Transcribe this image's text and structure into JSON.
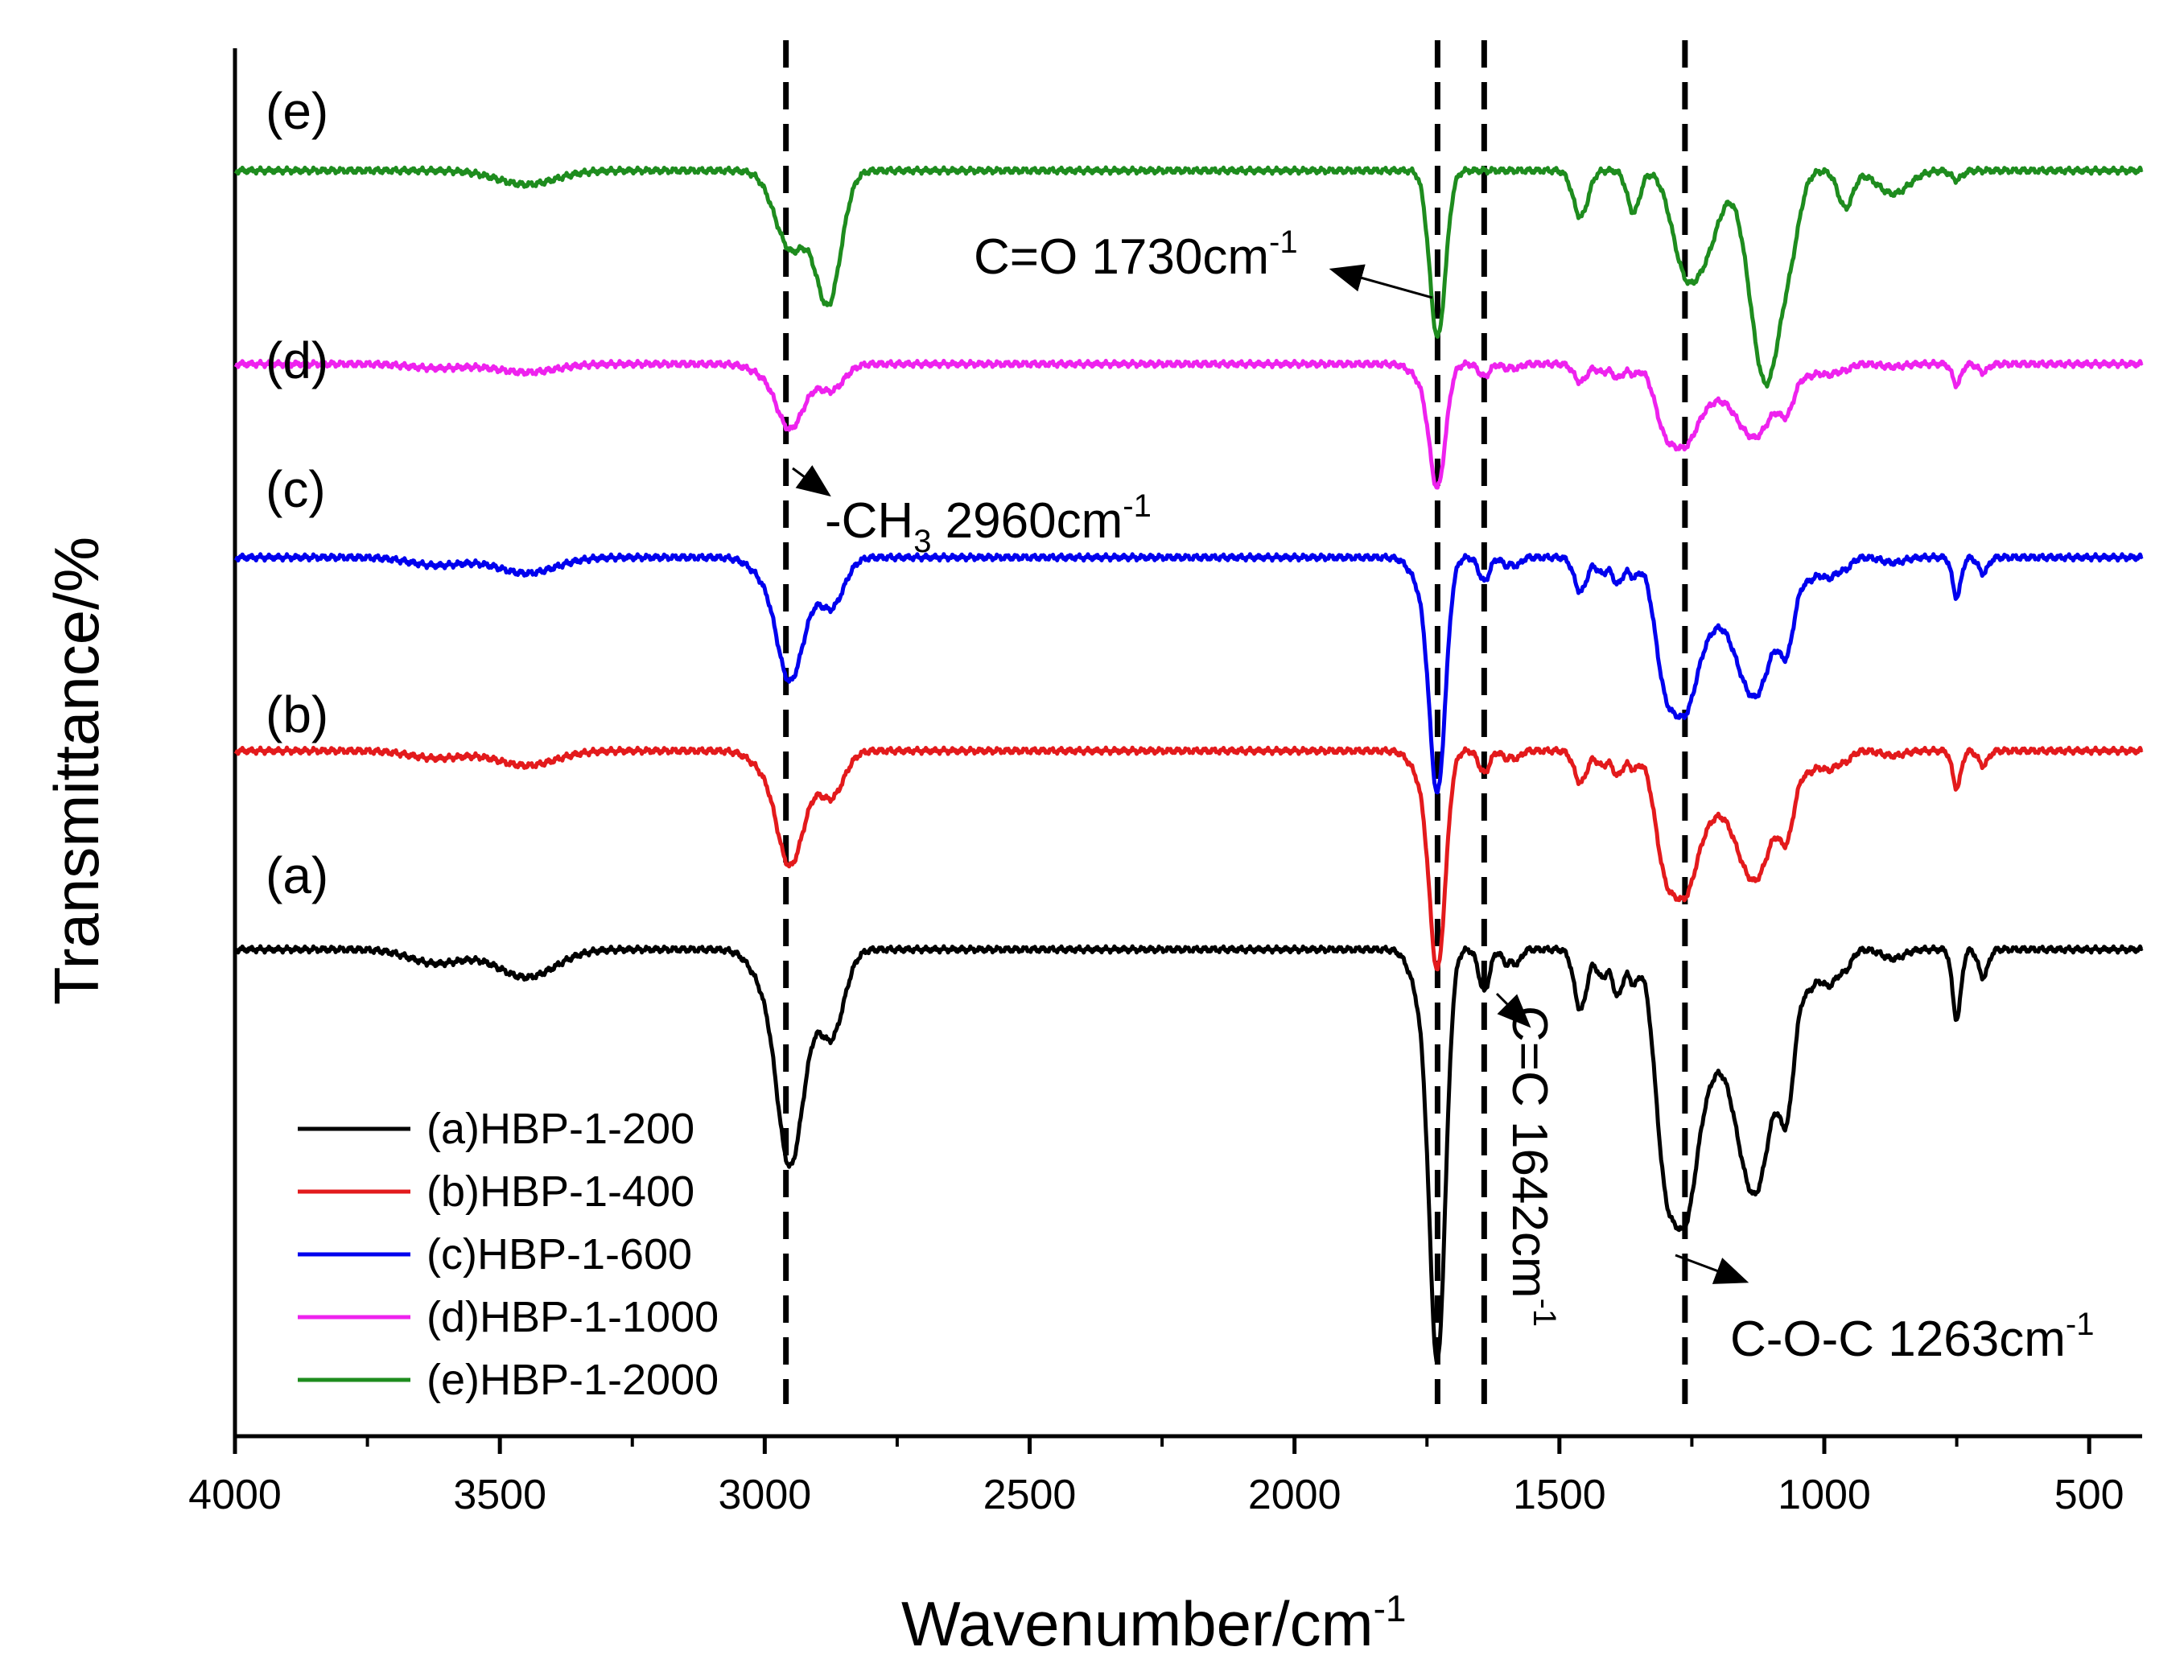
{
  "chart_data": {
    "type": "line",
    "title": "",
    "xlabel": "Wavenumber/cm",
    "xlabel_sup": "-1",
    "ylabel": "Transmittance/%",
    "xlim": [
      4000,
      400
    ],
    "x_reversed": true,
    "x_ticks": [
      4000,
      3500,
      3000,
      2500,
      2000,
      1500,
      1000,
      500
    ],
    "x_tick_labels": [
      "4000",
      "3500",
      "3000",
      "2500",
      "2000",
      "1500",
      "1000",
      "500"
    ],
    "y_ticks_shown": false,
    "grid": false,
    "legend_position": "bottom-left",
    "baseline_offsets": [
      0.0,
      0.38,
      0.75,
      1.12,
      1.49
    ],
    "series": [
      {
        "name": "(a)HBP-1-200",
        "panel_label": "(a)",
        "color": "#000000",
        "scale": 1.0,
        "peaks": [
          {
            "x": 3620,
            "depth": 0.03,
            "width": 50
          },
          {
            "x": 3450,
            "depth": 0.06,
            "width": 55
          },
          {
            "x": 2960,
            "depth": 0.27,
            "width": 20
          },
          {
            "x": 2935,
            "depth": 0.24,
            "width": 22
          },
          {
            "x": 2875,
            "depth": 0.19,
            "width": 24
          },
          {
            "x": 2990,
            "depth": 0.09,
            "width": 30
          },
          {
            "x": 1730,
            "depth": 0.86,
            "width": 15
          },
          {
            "x": 1760,
            "depth": 0.1,
            "width": 20
          },
          {
            "x": 1642,
            "depth": 0.09,
            "width": 10
          },
          {
            "x": 1600,
            "depth": 0.03,
            "width": 8
          },
          {
            "x": 1580,
            "depth": 0.03,
            "width": 8
          },
          {
            "x": 1460,
            "depth": 0.13,
            "width": 12
          },
          {
            "x": 1420,
            "depth": 0.06,
            "width": 10
          },
          {
            "x": 1390,
            "depth": 0.1,
            "width": 10
          },
          {
            "x": 1360,
            "depth": 0.07,
            "width": 10
          },
          {
            "x": 1300,
            "depth": 0.45,
            "width": 20
          },
          {
            "x": 1263,
            "depth": 0.42,
            "width": 20
          },
          {
            "x": 1230,
            "depth": 0.22,
            "width": 25
          },
          {
            "x": 1150,
            "depth": 0.33,
            "width": 40
          },
          {
            "x": 1120,
            "depth": 0.25,
            "width": 30
          },
          {
            "x": 1070,
            "depth": 0.26,
            "width": 14
          },
          {
            "x": 1030,
            "depth": 0.08,
            "width": 18
          },
          {
            "x": 990,
            "depth": 0.07,
            "width": 14
          },
          {
            "x": 960,
            "depth": 0.04,
            "width": 12
          },
          {
            "x": 870,
            "depth": 0.02,
            "width": 20
          },
          {
            "x": 750,
            "depth": 0.15,
            "width": 8
          },
          {
            "x": 700,
            "depth": 0.06,
            "width": 9
          }
        ]
      },
      {
        "name": "(b)HBP-1-400",
        "panel_label": "(b)",
        "color": "#e31a1c",
        "scale": 0.53,
        "peaks": []
      },
      {
        "name": "(c)HBP-1-600",
        "panel_label": "(c)",
        "color": "#0000ee",
        "scale": 0.57,
        "peaks": []
      },
      {
        "name": "(d)HBP-1-1000",
        "panel_label": "(d)",
        "color": "#ee22ee",
        "scale": 0.3,
        "peaks": []
      },
      {
        "name": "(e)HBP-1-2000",
        "panel_label": "(e)",
        "color": "#1e8c1e",
        "scale": 0.62,
        "peaks": [
          {
            "x": 3450,
            "depth": 0.03,
            "width": 55
          },
          {
            "x": 2950,
            "depth": 0.17,
            "width": 30
          },
          {
            "x": 2880,
            "depth": 0.28,
            "width": 24
          },
          {
            "x": 1730,
            "depth": 0.36,
            "width": 15
          },
          {
            "x": 1460,
            "depth": 0.1,
            "width": 14
          },
          {
            "x": 1360,
            "depth": 0.09,
            "width": 12
          },
          {
            "x": 1263,
            "depth": 0.2,
            "width": 25
          },
          {
            "x": 1220,
            "depth": 0.14,
            "width": 25
          },
          {
            "x": 1110,
            "depth": 0.46,
            "width": 30
          },
          {
            "x": 1060,
            "depth": 0.08,
            "width": 16
          },
          {
            "x": 960,
            "depth": 0.08,
            "width": 14
          },
          {
            "x": 870,
            "depth": 0.05,
            "width": 30
          },
          {
            "x": 750,
            "depth": 0.02,
            "width": 10
          }
        ]
      }
    ],
    "reference_lines": [
      2960,
      1730,
      1642,
      1263
    ],
    "annotations": [
      {
        "id": "co",
        "text": "C=O 1730cm",
        "sup": "-1",
        "arrow_to": 1730
      },
      {
        "id": "ch3",
        "text": "-CH",
        "sub": "3",
        "text2": " 2960cm",
        "sup": "-1",
        "arrow_to": 2960
      },
      {
        "id": "cc",
        "text": "C=C 1642cm",
        "sup": "-1",
        "arrow_to": 1642
      },
      {
        "id": "coc",
        "text": "C-O-C 1263cm",
        "sup": "-1",
        "arrow_to": 1263
      }
    ]
  }
}
